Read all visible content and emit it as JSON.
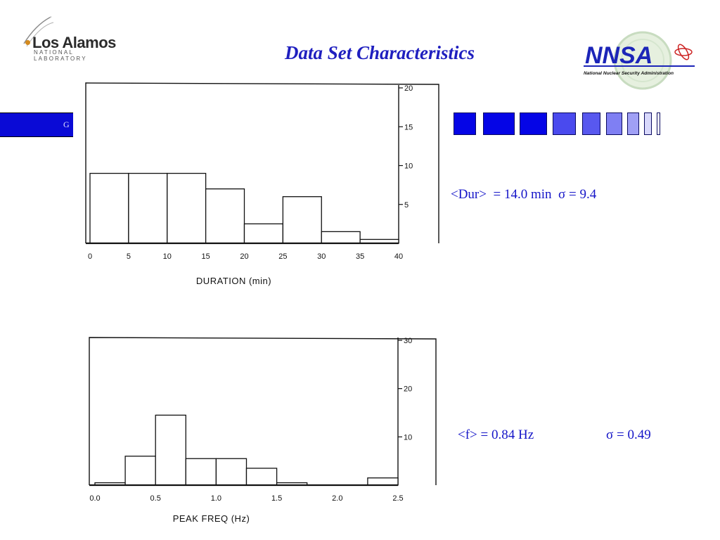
{
  "header": {
    "title": "Data Set Characteristics",
    "lanl_logo": {
      "name": "Los Alamos",
      "subtitle": "NATIONAL LABORATORY"
    },
    "nnsa_logo": {
      "letters": "NNSA",
      "caption": "National Nuclear Security Administration"
    }
  },
  "band": {
    "letter": "G",
    "color": "#0a0ad6"
  },
  "squares": {
    "colors": [
      "#0505e6",
      "#0505e6",
      "#0505e6",
      "#4a4aee",
      "#5858ef",
      "#7f7ff3",
      "#a0a0f5",
      "#d8d8fb",
      "#ffffff"
    ]
  },
  "stats": {
    "duration": "<Dur>  = 14.0 min  σ = 9.4",
    "freq_mean": "<f> = 0.84 Hz",
    "freq_sigma": "σ = 0.49"
  },
  "chart_data": [
    {
      "type": "bar",
      "xlabel": "DURATION  (min)",
      "ylabel": "",
      "bin_edges": [
        0,
        5,
        10,
        15,
        20,
        25,
        30,
        35,
        40
      ],
      "values": [
        9,
        9,
        9,
        7,
        2.5,
        6,
        1.5,
        0.5
      ],
      "xlim": [
        0,
        40
      ],
      "ylim": [
        0,
        20
      ],
      "x_ticks": [
        "0",
        "5",
        "10",
        "15",
        "20",
        "25",
        "30",
        "35",
        "40"
      ],
      "y_ticks": [
        "5",
        "10",
        "15",
        "20"
      ],
      "y_tick_values": [
        5,
        10,
        15,
        20
      ]
    },
    {
      "type": "bar",
      "xlabel": "PEAK  FREQ  (Hz)",
      "ylabel": "",
      "bin_edges": [
        0,
        0.25,
        0.5,
        0.75,
        1.0,
        1.25,
        1.5,
        1.75,
        2.0,
        2.25,
        2.5
      ],
      "values": [
        0.5,
        6,
        14.5,
        5.5,
        5.5,
        3.5,
        0.5,
        0,
        0,
        1.5
      ],
      "xlim": [
        0,
        2.5
      ],
      "ylim": [
        0,
        30
      ],
      "x_ticks": [
        "0.0",
        "0.5",
        "1.0",
        "1.5",
        "2.0",
        "2.5"
      ],
      "x_tick_values": [
        0,
        0.5,
        1.0,
        1.5,
        2.0,
        2.5
      ],
      "y_ticks": [
        "10",
        "20",
        "30"
      ],
      "y_tick_values": [
        10,
        20,
        30
      ]
    }
  ]
}
